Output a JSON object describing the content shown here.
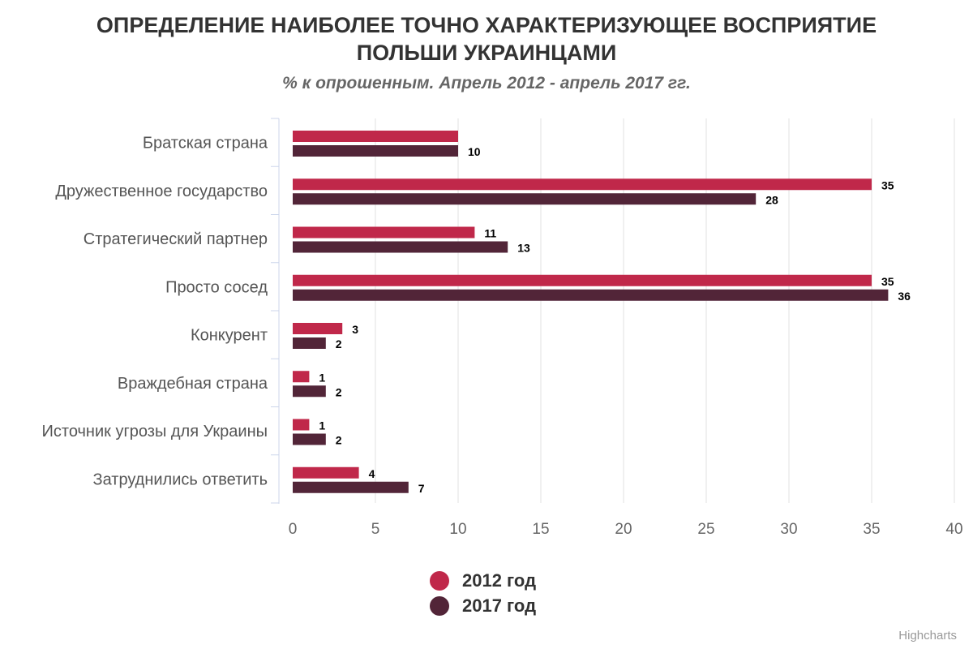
{
  "chart_data": {
    "type": "bar",
    "orientation": "horizontal",
    "title": "ОПРЕДЕЛЕНИЕ НАИБОЛЕЕ ТОЧНО ХАРАКТЕРИЗУЮЩЕЕ ВОСПРИЯТИЕ ПОЛЬШИ УКРАИНЦАМИ",
    "title_lines": [
      "ОПРЕДЕЛЕНИЕ НАИБОЛЕЕ ТОЧНО ХАРАКТЕРИЗУЮЩЕЕ ВОСПРИЯТИЕ",
      "ПОЛЬШИ УКРАИНЦАМИ"
    ],
    "subtitle": "% к опрошенным. Апрель 2012 - апрель 2017 гг.",
    "categories": [
      "Братская страна",
      "Дружественное государство",
      "Стратегический партнер",
      "Просто сосед",
      "Конкурент",
      "Враждебная страна",
      "Источник угрозы для Украины",
      "Затруднились ответить"
    ],
    "series": [
      {
        "name": "2012 год",
        "color": "#c0284a",
        "values": [
          10,
          35,
          11,
          35,
          3,
          1,
          1,
          4
        ]
      },
      {
        "name": "2017 год",
        "color": "#522538",
        "values": [
          10,
          28,
          13,
          36,
          2,
          2,
          2,
          7
        ]
      }
    ],
    "data_labels_shown": [
      [
        false,
        true,
        true,
        true,
        true,
        true,
        true,
        true
      ],
      [
        true,
        true,
        true,
        true,
        true,
        true,
        true,
        true
      ]
    ],
    "xlim": [
      0,
      40
    ],
    "xticks": [
      0,
      5,
      10,
      15,
      20,
      25,
      30,
      35,
      40
    ],
    "grid": true,
    "legend_position": "bottom-center"
  },
  "credits": "Highcharts"
}
